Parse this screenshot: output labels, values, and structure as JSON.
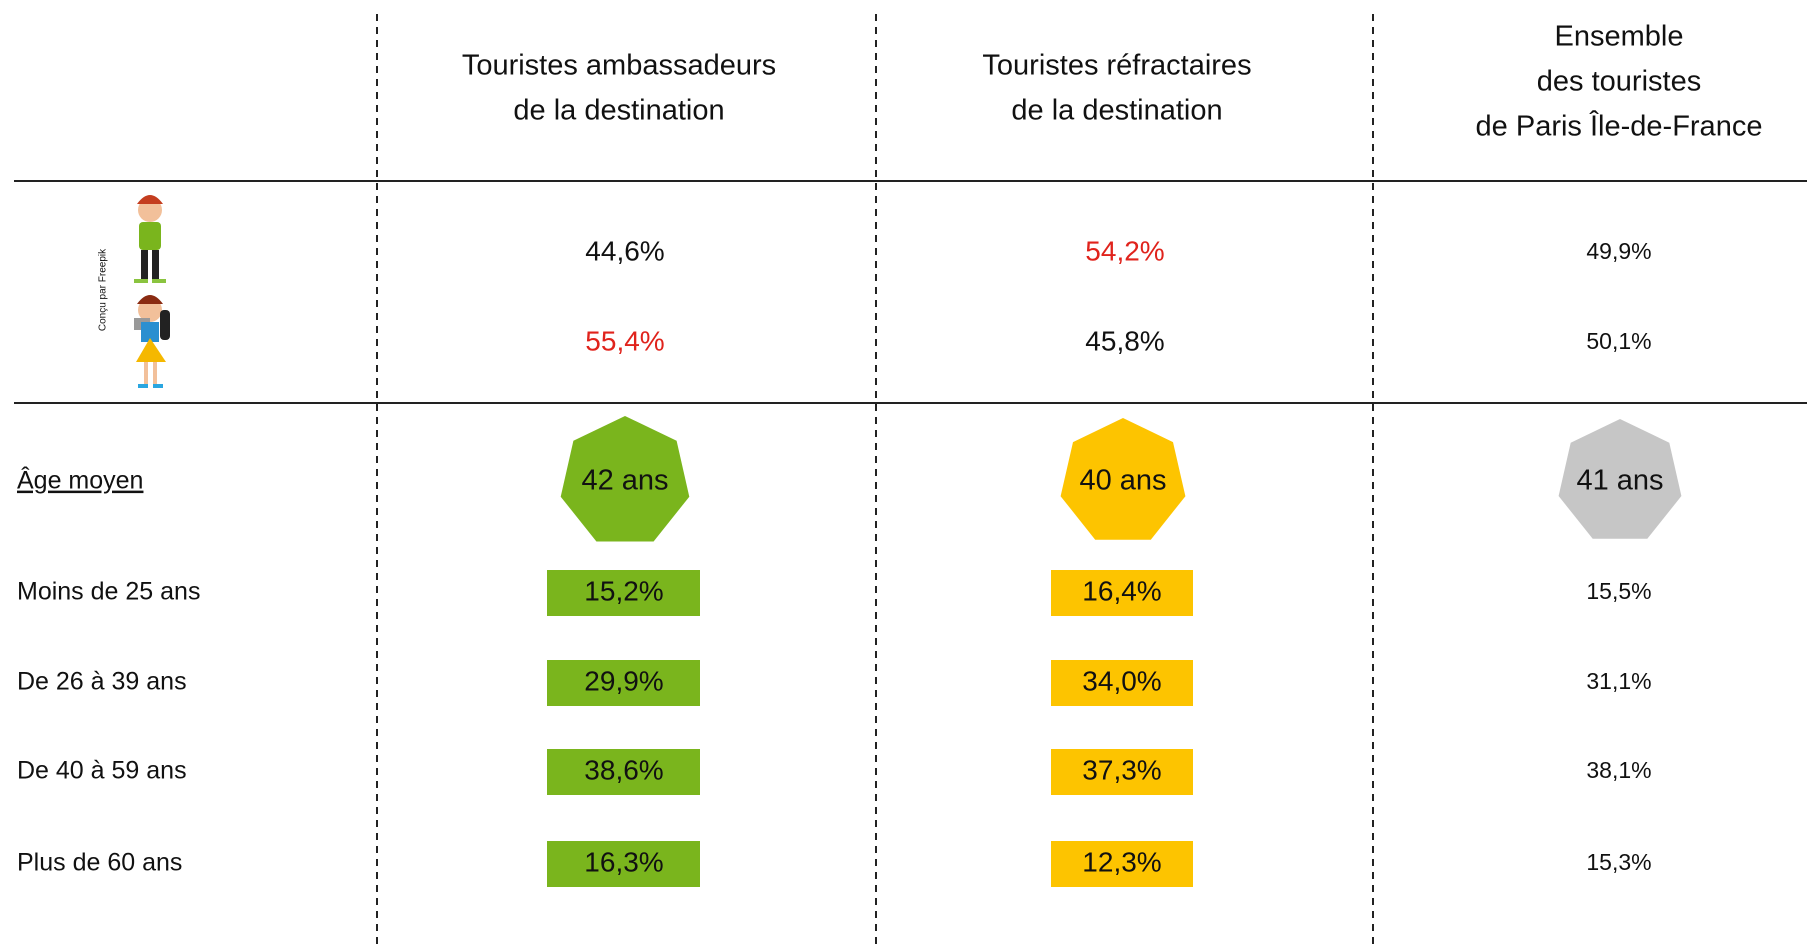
{
  "header": {
    "columns": [
      [
        "Touristes ambassadeurs",
        "de la destination"
      ],
      [
        "Touristes réfractaires",
        "de la destination"
      ],
      [
        "Ensemble",
        "des touristes",
        "de Paris Île-de-France"
      ]
    ]
  },
  "credit": "Conçu par Freepik",
  "gender_rows": [
    [
      "44,6%",
      "54,2%",
      "49,9%"
    ],
    [
      "55,4%",
      "45,8%",
      "50,1%"
    ]
  ],
  "age": {
    "label": "Âge moyen",
    "values": [
      "42 ans",
      "40 ans",
      "41 ans"
    ]
  },
  "age_rows": [
    {
      "label": "Moins de 25 ans",
      "values": [
        "15,2%",
        "16,4%",
        "15,5%"
      ]
    },
    {
      "label": "De 26 à 39 ans",
      "values": [
        "29,9%",
        "34,0%",
        "31,1%"
      ]
    },
    {
      "label": "De 40 à 59 ans",
      "values": [
        "38,6%",
        "37,3%",
        "38,1%"
      ]
    },
    {
      "label": "Plus de 60 ans",
      "values": [
        "16,3%",
        "12,3%",
        "15,3%"
      ]
    }
  ]
}
